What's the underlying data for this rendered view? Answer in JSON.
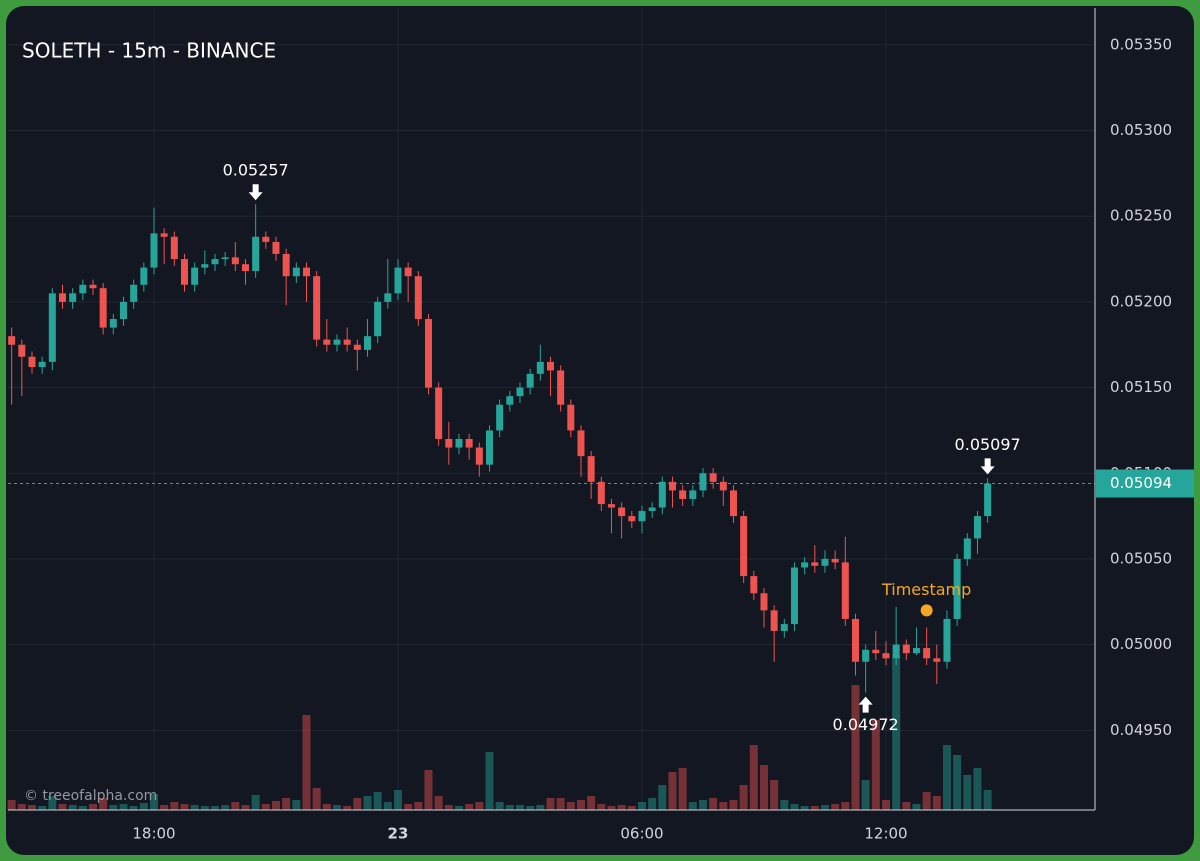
{
  "chart_data": {
    "type": "candlestick",
    "title": "SOLETH - 15m - BINANCE",
    "watermark": "© treeofalpha.com",
    "up_color": "#26a69a",
    "down_color": "#ef5350",
    "grid": true,
    "xlim": [
      14.41,
      41.14
    ],
    "xticks": [
      {
        "value": 18,
        "label": "18:00"
      },
      {
        "value": 24,
        "label": "23"
      },
      {
        "value": 30,
        "label": "06:00"
      },
      {
        "value": 36,
        "label": "12:00"
      }
    ],
    "ylim": [
      0.049035,
      0.053715
    ],
    "yticks": [
      {
        "value": 0.0495,
        "label": "0.04950"
      },
      {
        "value": 0.05,
        "label": "0.05000"
      },
      {
        "value": 0.0505,
        "label": "0.05050"
      },
      {
        "value": 0.051,
        "label": "0.05100"
      },
      {
        "value": 0.0515,
        "label": "0.05150"
      },
      {
        "value": 0.052,
        "label": "0.05200"
      },
      {
        "value": 0.0525,
        "label": "0.05250"
      },
      {
        "value": 0.053,
        "label": "0.05300"
      },
      {
        "value": 0.0535,
        "label": "0.05350"
      }
    ],
    "x": [
      14.5,
      14.75,
      15,
      15.25,
      15.5,
      15.75,
      16,
      16.25,
      16.5,
      16.75,
      17,
      17.25,
      17.5,
      17.75,
      18,
      18.25,
      18.5,
      18.75,
      19,
      19.25,
      19.5,
      19.75,
      20,
      20.25,
      20.5,
      20.75,
      21,
      21.25,
      21.5,
      21.75,
      22,
      22.25,
      22.5,
      22.75,
      23,
      23.25,
      23.5,
      23.75,
      24,
      24.25,
      24.5,
      24.75,
      25,
      25.25,
      25.5,
      25.75,
      26,
      26.25,
      26.5,
      26.75,
      27,
      27.25,
      27.5,
      27.75,
      28,
      28.25,
      28.5,
      28.75,
      29,
      29.25,
      29.5,
      29.75,
      30,
      30.25,
      30.5,
      30.75,
      31,
      31.25,
      31.5,
      31.75,
      32,
      32.25,
      32.5,
      32.75,
      33,
      33.25,
      33.5,
      33.75,
      34,
      34.25,
      34.5,
      34.75,
      35,
      35.25,
      35.5,
      35.75,
      36,
      36.25,
      36.5,
      36.75,
      37,
      37.25,
      37.5,
      37.75,
      38,
      38.25,
      38.5
    ],
    "open": [
      0.0518,
      0.05175,
      0.05168,
      0.05162,
      0.05165,
      0.05205,
      0.052,
      0.05205,
      0.0521,
      0.05208,
      0.05185,
      0.0519,
      0.052,
      0.0521,
      0.0522,
      0.0524,
      0.05238,
      0.05225,
      0.0521,
      0.0522,
      0.05222,
      0.05225,
      0.05226,
      0.05222,
      0.05218,
      0.05238,
      0.05235,
      0.05228,
      0.05215,
      0.0522,
      0.05215,
      0.05178,
      0.05175,
      0.05178,
      0.05175,
      0.05172,
      0.0518,
      0.052,
      0.05205,
      0.0522,
      0.05215,
      0.0519,
      0.0515,
      0.0512,
      0.05115,
      0.0512,
      0.05115,
      0.05105,
      0.05125,
      0.0514,
      0.05145,
      0.0515,
      0.05158,
      0.05165,
      0.0516,
      0.0514,
      0.05125,
      0.0511,
      0.05095,
      0.05082,
      0.0508,
      0.05075,
      0.05072,
      0.05078,
      0.0508,
      0.05095,
      0.0509,
      0.05085,
      0.0509,
      0.051,
      0.05095,
      0.0509,
      0.05075,
      0.0504,
      0.0503,
      0.0502,
      0.05008,
      0.05012,
      0.05045,
      0.05048,
      0.05046,
      0.0505,
      0.05048,
      0.05015,
      0.0499,
      0.04997,
      0.04995,
      0.04992,
      0.05,
      0.04995,
      0.04998,
      0.04992,
      0.0499,
      0.05015,
      0.0505,
      0.05062,
      0.05075
    ],
    "high": [
      0.05185,
      0.05178,
      0.05171,
      0.05168,
      0.05208,
      0.0521,
      0.05208,
      0.05213,
      0.05213,
      0.05211,
      0.05193,
      0.05203,
      0.05213,
      0.05223,
      0.05255,
      0.05243,
      0.05241,
      0.05228,
      0.05223,
      0.0523,
      0.05228,
      0.05229,
      0.05235,
      0.05225,
      0.05257,
      0.05241,
      0.05238,
      0.05231,
      0.05223,
      0.05223,
      0.05218,
      0.0519,
      0.05181,
      0.05185,
      0.05178,
      0.0519,
      0.05203,
      0.05225,
      0.05225,
      0.05223,
      0.05218,
      0.05193,
      0.05153,
      0.0513,
      0.05123,
      0.05123,
      0.05118,
      0.05128,
      0.05143,
      0.05148,
      0.05153,
      0.05161,
      0.05175,
      0.05168,
      0.05163,
      0.05143,
      0.05128,
      0.05113,
      0.05098,
      0.05085,
      0.05083,
      0.05078,
      0.05081,
      0.05083,
      0.05098,
      0.05098,
      0.05093,
      0.05093,
      0.05103,
      0.05103,
      0.05098,
      0.05093,
      0.05078,
      0.05043,
      0.05033,
      0.05023,
      0.05015,
      0.05048,
      0.05051,
      0.05058,
      0.05055,
      0.05055,
      0.05063,
      0.05018,
      0.05,
      0.05008,
      0.05002,
      0.05022,
      0.05003,
      0.0501,
      0.0501,
      0.05,
      0.0502,
      0.05053,
      0.05065,
      0.05078,
      0.05097
    ],
    "low": [
      0.0514,
      0.05145,
      0.05158,
      0.05158,
      0.0516,
      0.05196,
      0.05196,
      0.05201,
      0.05204,
      0.05181,
      0.05181,
      0.05186,
      0.05196,
      0.05206,
      0.05216,
      0.05222,
      0.05221,
      0.05206,
      0.05206,
      0.05216,
      0.05218,
      0.05221,
      0.05218,
      0.0521,
      0.05214,
      0.05231,
      0.05224,
      0.05198,
      0.05211,
      0.052,
      0.05174,
      0.05171,
      0.05171,
      0.05171,
      0.0516,
      0.05168,
      0.05176,
      0.05196,
      0.05201,
      0.052,
      0.05186,
      0.05146,
      0.05116,
      0.05105,
      0.05111,
      0.05108,
      0.05098,
      0.05101,
      0.05121,
      0.05136,
      0.05141,
      0.05146,
      0.05154,
      0.05145,
      0.05136,
      0.05121,
      0.05098,
      0.05085,
      0.05078,
      0.05065,
      0.05062,
      0.05068,
      0.05065,
      0.05074,
      0.05076,
      0.0508,
      0.05081,
      0.05081,
      0.05086,
      0.05091,
      0.05081,
      0.05071,
      0.05036,
      0.05026,
      0.0501,
      0.0499,
      0.05004,
      0.05008,
      0.05041,
      0.05042,
      0.05042,
      0.05044,
      0.05011,
      0.04982,
      0.04972,
      0.04991,
      0.04988,
      0.04988,
      0.04991,
      0.04994,
      0.04988,
      0.04977,
      0.04986,
      0.05011,
      0.05046,
      0.05053,
      0.05071
    ],
    "close": [
      0.05175,
      0.05168,
      0.05162,
      0.05165,
      0.05205,
      0.052,
      0.05205,
      0.0521,
      0.05208,
      0.05185,
      0.0519,
      0.052,
      0.0521,
      0.0522,
      0.0524,
      0.05238,
      0.05225,
      0.0521,
      0.0522,
      0.05222,
      0.05225,
      0.05226,
      0.05222,
      0.05218,
      0.05238,
      0.05235,
      0.05228,
      0.05215,
      0.0522,
      0.05215,
      0.05178,
      0.05175,
      0.05178,
      0.05175,
      0.05172,
      0.0518,
      0.052,
      0.05205,
      0.0522,
      0.05215,
      0.0519,
      0.0515,
      0.0512,
      0.05115,
      0.0512,
      0.05115,
      0.05105,
      0.05125,
      0.0514,
      0.05145,
      0.0515,
      0.05158,
      0.05165,
      0.0516,
      0.0514,
      0.05125,
      0.0511,
      0.05095,
      0.05082,
      0.0508,
      0.05075,
      0.05072,
      0.05078,
      0.0508,
      0.05095,
      0.0509,
      0.05085,
      0.0509,
      0.051,
      0.05095,
      0.0509,
      0.05075,
      0.0504,
      0.0503,
      0.0502,
      0.05008,
      0.05012,
      0.05045,
      0.05048,
      0.05046,
      0.0505,
      0.05048,
      0.05015,
      0.0499,
      0.04997,
      0.04995,
      0.04992,
      0.05,
      0.04995,
      0.04998,
      0.04992,
      0.0499,
      0.05015,
      0.0505,
      0.05062,
      0.05075,
      0.05094
    ],
    "volume": [
      10,
      6,
      5,
      4,
      14,
      6,
      5,
      4,
      6,
      12,
      5,
      6,
      4,
      7,
      16,
      5,
      8,
      6,
      5,
      4,
      4,
      5,
      8,
      5,
      15,
      6,
      9,
      12,
      10,
      95,
      22,
      6,
      5,
      4,
      12,
      14,
      18,
      8,
      20,
      6,
      8,
      40,
      14,
      5,
      4,
      6,
      8,
      58,
      8,
      5,
      5,
      4,
      5,
      12,
      12,
      8,
      10,
      14,
      6,
      4,
      5,
      4,
      8,
      12,
      25,
      38,
      42,
      8,
      10,
      12,
      8,
      10,
      25,
      65,
      45,
      30,
      10,
      6,
      4,
      4,
      5,
      6,
      8,
      125,
      30,
      90,
      10,
      155,
      8,
      6,
      18,
      14,
      65,
      55,
      35,
      42,
      20
    ],
    "markers": [
      {
        "x": 20.5,
        "value": 0.05257,
        "position": "above"
      },
      {
        "x": 35.5,
        "value": 0.04972,
        "position": "below"
      },
      {
        "x": 38.5,
        "value": 0.05097,
        "position": "above"
      }
    ],
    "annotations": [
      {
        "text": "Timestamp",
        "x": 37,
        "y": 0.0502,
        "color": "#f5a623"
      }
    ]
  }
}
